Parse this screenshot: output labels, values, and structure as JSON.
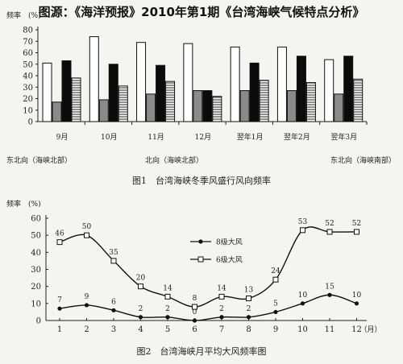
{
  "header": {
    "title": "图源：《海洋预报》2010年第1期《台湾海峡气候特点分析》"
  },
  "chart_data": [
    {
      "type": "bar",
      "title": "图1　台湾海峡冬季风盛行风向频率",
      "ylabel": "频率　(%)",
      "ylim": [
        0,
        80
      ],
      "yticks": [
        0,
        10,
        20,
        30,
        40,
        50,
        60,
        70,
        80
      ],
      "categories": [
        "9月",
        "10月",
        "11月",
        "12月",
        "翌年1月",
        "翌年2月",
        "翌年3月"
      ],
      "series": [
        {
          "name": "东北向（海峡北部）",
          "fill": "white",
          "values": [
            51,
            74,
            69,
            68,
            65,
            65,
            54
          ]
        },
        {
          "name": "",
          "fill": "gray",
          "values": [
            17,
            19,
            24,
            27,
            27,
            27,
            24
          ]
        },
        {
          "name": "北向（海峡北部）",
          "fill": "black",
          "values": [
            53,
            50,
            49,
            27,
            51,
            57,
            57
          ]
        },
        {
          "name": "东北向（海峡南部）",
          "fill": "hatched",
          "values": [
            38,
            31,
            35,
            22,
            36,
            34,
            37
          ]
        }
      ],
      "legend_labels": [
        "东北向（海峡北部）",
        "北向（海峡北部）",
        "东北向（海峡南部）"
      ],
      "grid": false
    },
    {
      "type": "line",
      "title": "图2　台湾海峡月平均大风频率图",
      "ylabel": "频率　(%)",
      "xlabel": "（月）",
      "ylim": [
        0,
        60
      ],
      "yticks": [
        0,
        10,
        20,
        30,
        40,
        50,
        60
      ],
      "x": [
        1,
        2,
        3,
        4,
        5,
        6,
        7,
        8,
        9,
        10,
        11,
        12
      ],
      "series": [
        {
          "name": "8级大风",
          "marker": "filled",
          "values": [
            7,
            9,
            6,
            2,
            2,
            0,
            2,
            2,
            5,
            10,
            15,
            10
          ]
        },
        {
          "name": "6级大风",
          "marker": "open",
          "values": [
            46,
            50,
            35,
            20,
            14,
            8,
            14,
            13,
            24,
            53,
            52,
            52
          ]
        }
      ],
      "point_labels": {
        "8级大风": [
          "7",
          "9",
          "6",
          "2",
          "2",
          "0",
          "2",
          "2",
          "5",
          "10",
          "15",
          "10"
        ],
        "6级大风": [
          "46",
          "50",
          "35",
          "20",
          "14",
          "8",
          "14",
          "13",
          "24",
          "53",
          "52",
          "52"
        ]
      },
      "legend": "center-right",
      "grid": false
    }
  ]
}
